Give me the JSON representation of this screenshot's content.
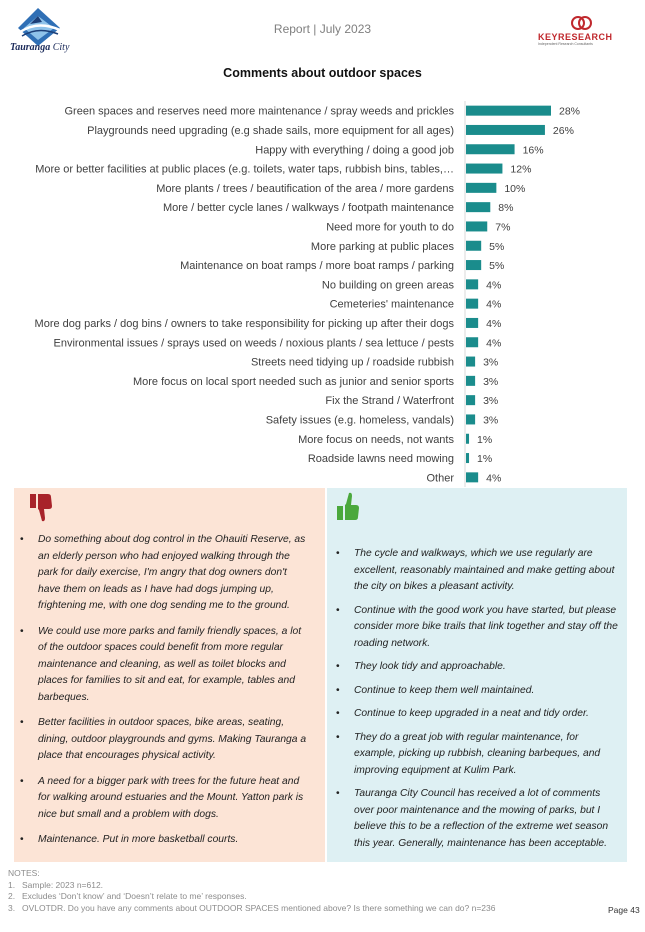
{
  "header": {
    "report_title": "Report | July 2023",
    "logo_text_bold": "Tauranga",
    "logo_text_rest": " City",
    "brand_name": "KEYRESEARCH",
    "brand_tagline": "Independent Research Consultants"
  },
  "chart_title": "Comments about outdoor spaces",
  "chart_data": {
    "type": "bar",
    "orientation": "horizontal",
    "title": "Comments about outdoor spaces",
    "color": "#1a8c8c",
    "categories": [
      "Green spaces and reserves need more maintenance  / spray weeds and prickles",
      "Playgrounds need upgrading (e.g shade sails,  more equipment for all ages)",
      "Happy with everything / doing a good job",
      "More or better facilities at public places (e.g. toilets, water taps, rubbish bins, tables,…",
      "More plants / trees / beautification of the area / more gardens",
      "More / better cycle lanes / walkways / footpath maintenance",
      "Need more for youth to do",
      "More parking at public places",
      "Maintenance on boat ramps / more boat ramps / parking",
      "No building on green areas",
      "Cemeteries' maintenance",
      "More dog parks / dog bins / owners to take responsibility for picking up after their dogs",
      "Environmental issues / sprays used on weeds / noxious plants / sea lettuce / pests",
      "Streets need tidying up / roadside rubbish",
      "More focus on local sport needed such as junior and senior sports",
      "Fix the Strand / Waterfront",
      "Safety issues (e.g. homeless, vandals)",
      "More focus on needs, not wants",
      "Roadside lawns need mowing",
      "Other"
    ],
    "values": [
      28,
      26,
      16,
      12,
      10,
      8,
      7,
      5,
      5,
      4,
      4,
      4,
      4,
      3,
      3,
      3,
      3,
      1,
      1,
      4
    ],
    "value_labels": [
      "28%",
      "26%",
      "16%",
      "12%",
      "10%",
      "8%",
      "7%",
      "5%",
      "5%",
      "4%",
      "4%",
      "4%",
      "4%",
      "3%",
      "3%",
      "3%",
      "3%",
      "1%",
      "1%",
      "4%"
    ],
    "xlim": [
      0,
      30
    ],
    "grid": false
  },
  "negative_comments": [
    "Do something about dog control in the Ohauiti Reserve, as an elderly person who had enjoyed walking through the park for daily exercise, I'm angry that dog owners don't have them on leads as  I have had dogs jumping up, frightening me, with one dog sending me to the ground.",
    "We could use more parks and family friendly spaces, a lot of the outdoor spaces could benefit from more regular maintenance and cleaning, as well as toilet blocks and places for families to sit and eat, for example, tables and barbeques.",
    "Better facilities in outdoor spaces, bike areas, seating, dining, outdoor playgrounds and gyms. Making Tauranga a place that encourages physical activity.",
    "A need for a bigger park with trees for the future heat and for walking around estuaries and the Mount. Yatton park is nice but small and a problem with dogs.",
    "Maintenance. Put in more basketball courts."
  ],
  "positive_comments": [
    "The cycle and walkways, which we use regularly are excellent, reasonably maintained and make getting about the city on bikes a pleasant activity.",
    "Continue with the good work you have started, but please consider more bike trails that link together and stay off the roading network.",
    "They look tidy and approachable.",
    "Continue to keep them well maintained.",
    "Continue to keep upgraded in a neat and tidy order.",
    "They do a great job with regular maintenance, for example, picking up rubbish, cleaning barbeques, and improving equipment at Kulim Park.",
    "Tauranga City Council has received a lot of comments over poor maintenance and the mowing of parks, but I believe this to be a reflection of the extreme wet season this year. Generally, maintenance has been acceptable."
  ],
  "notes": {
    "heading": "NOTES:",
    "items": [
      {
        "num": "1.",
        "text": "Sample: 2023 n=612."
      },
      {
        "num": "2.",
        "text": "Excludes ‘Don’t know’ and ‘Doesn’t relate to me’ responses."
      },
      {
        "num": "3.",
        "text": "OVLOTDR. Do you have any comments about OUTDOOR SPACES mentioned above? Is there something we can do? n=236"
      }
    ]
  },
  "page_number": "Page 43",
  "colors": {
    "bar": "#1a8c8c",
    "negative_panel": "#fce4d6",
    "positive_panel": "#def0f3",
    "thumbs_down": "#a8232a",
    "thumbs_up": "#4aa83c",
    "brand_red": "#c0282d"
  },
  "icons": {
    "negative": "thumbs-down-icon",
    "positive": "thumbs-up-icon"
  }
}
